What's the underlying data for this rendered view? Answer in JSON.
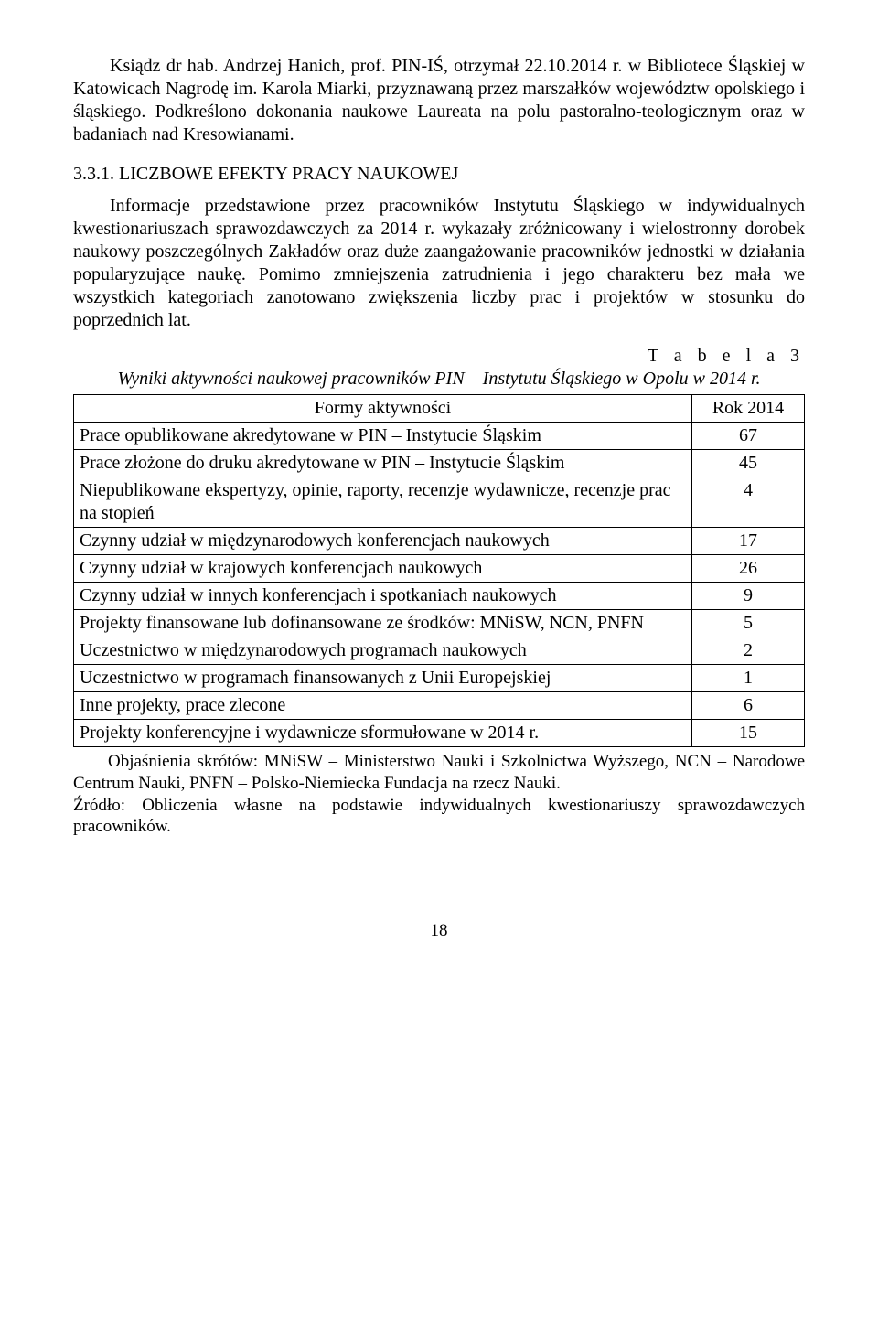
{
  "paragraphs": {
    "p1": "Ksiądz dr hab. Andrzej Hanich, prof. PIN-IŚ, otrzymał 22.10.2014 r. w Bibliotece Śląskiej w Katowicach Nagrodę im. Karola Miarki, przyznawaną przez marszałków województw opolskiego i śląskiego. Podkreślono dokonania naukowe Laureata na polu pastoralno-teologicznym oraz w badaniach nad Kresowianami.",
    "p2": "Informacje przedstawione przez pracowników Instytutu Śląskiego w indywidualnych kwestionariuszach sprawozdawczych za 2014 r. wykazały zróżnicowany i wielostronny dorobek naukowy poszczególnych Zakładów oraz duże zaangażowanie pracowników jednostki w działania popularyzujące naukę. Pomimo zmniejszenia zatrudnienia i jego charakteru bez mała we wszystkich kategoriach zanotowano zwiększenia liczby prac i projektów w stosunku do poprzednich lat."
  },
  "heading": {
    "num": "3.3.1.",
    "title": "LICZBOWE EFEKTY PRACY NAUKOWEJ"
  },
  "table": {
    "label": "T a b e l a 3",
    "caption": "Wyniki aktywności naukowej pracowników PIN – Instytutu Śląskiego w Opolu w 2014 r.",
    "header_left": "Formy aktywności",
    "header_right": "Rok 2014",
    "rows": [
      {
        "label": "Prace opublikowane akredytowane w PIN – Instytucie Śląskim",
        "value": "67"
      },
      {
        "label": "Prace złożone do druku akredytowane w PIN – Instytucie Śląskim",
        "value": "45"
      },
      {
        "label": "Niepublikowane ekspertyzy, opinie, raporty, recenzje wydawnicze, recenzje prac na stopień",
        "value": "4"
      },
      {
        "label": "Czynny udział w międzynarodowych konferencjach naukowych",
        "value": "17"
      },
      {
        "label": "Czynny udział w krajowych konferencjach naukowych",
        "value": "26"
      },
      {
        "label": "Czynny udział w innych konferencjach i spotkaniach naukowych",
        "value": "9"
      },
      {
        "label": "Projekty finansowane lub dofinansowane ze środków: MNiSW, NCN, PNFN",
        "value": "5"
      },
      {
        "label": "Uczestnictwo w międzynarodowych programach naukowych",
        "value": "2"
      },
      {
        "label": "Uczestnictwo w programach finansowanych z Unii Europejskiej",
        "value": "1"
      },
      {
        "label": "Inne projekty, prace zlecone",
        "value": "6"
      },
      {
        "label": "Projekty konferencyjne i wydawnicze sformułowane w 2014 r.",
        "value": "15"
      }
    ]
  },
  "footnotes": {
    "f1": "Objaśnienia skrótów: MNiSW – Ministerstwo Nauki i Szkolnictwa Wyższego, NCN – Narodowe Centrum Nauki, PNFN – Polsko-Niemiecka Fundacja na rzecz Nauki.",
    "f2": "Źródło: Obliczenia własne na podstawie indywidualnych kwestionariuszy sprawozdawczych pracowników."
  },
  "page_number": "18"
}
